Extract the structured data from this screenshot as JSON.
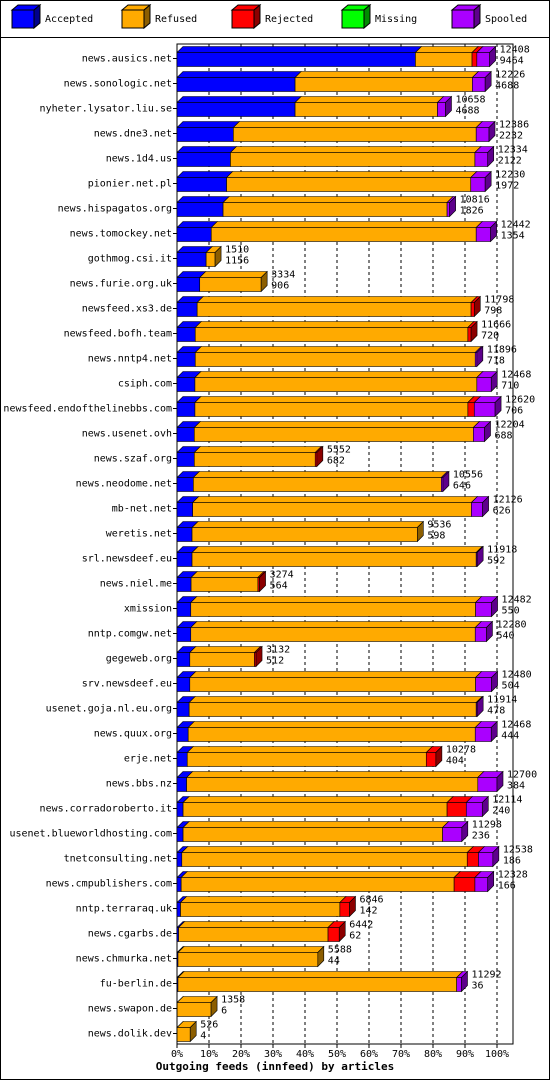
{
  "chart_data": {
    "type": "bar3d",
    "x_label": "Outgoing feeds (innfeed) by articles",
    "categories": [
      "news.ausics.net",
      "news.sonologic.net",
      "nyheter.lysator.liu.se",
      "news.dne3.net",
      "news.1d4.us",
      "pionier.net.pl",
      "news.hispagatos.org",
      "news.tomockey.net",
      "gothmog.csi.it",
      "news.furie.org.uk",
      "newsfeed.xs3.de",
      "newsfeed.bofh.team",
      "news.nntp4.net",
      "csiph.com",
      "newsfeed.endofthelinebbs.com",
      "news.usenet.ovh",
      "news.szaf.org",
      "news.neodome.net",
      "mb-net.net",
      "weretis.net",
      "srl.newsdeef.eu",
      "news.niel.me",
      "xmission",
      "nntp.comgw.net",
      "gegeweb.org",
      "srv.newsdeef.eu",
      "usenet.goja.nl.eu.org",
      "news.quux.org",
      "erje.net",
      "news.bbs.nz",
      "news.corradoroberto.it",
      "usenet.blueworldhosting.com",
      "tnetconsulting.net",
      "news.cmpublishers.com",
      "nntp.terraraq.uk",
      "news.cgarbs.de",
      "news.chmurka.net",
      "fu-berlin.de",
      "news.swapon.de",
      "news.dolik.dev"
    ],
    "totals": [
      12408,
      12226,
      10658,
      12386,
      12334,
      12230,
      10816,
      12442,
      1510,
      3334,
      11798,
      11666,
      11896,
      12468,
      12620,
      12204,
      5552,
      10556,
      12126,
      9536,
      11918,
      3274,
      12482,
      12280,
      3132,
      12480,
      11914,
      12468,
      10278,
      12700,
      12114,
      11298,
      12538,
      12328,
      6846,
      6442,
      5588,
      11292,
      1358,
      526
    ],
    "accepted_counts": [
      9464,
      4688,
      4688,
      2232,
      2122,
      1972,
      1826,
      1354,
      1156,
      906,
      798,
      720,
      718,
      710,
      706,
      688,
      682,
      646,
      626,
      598,
      592,
      564,
      550,
      540,
      512,
      504,
      478,
      444,
      404,
      384,
      240,
      236,
      186,
      166,
      142,
      62,
      44,
      36,
      6,
      4
    ],
    "series": [
      {
        "name": "Accepted",
        "color": "#0000ff",
        "values": [
          74.5,
          36.9,
          36.9,
          17.6,
          16.7,
          15.5,
          14.4,
          10.7,
          9.1,
          7.1,
          6.3,
          5.7,
          5.7,
          5.6,
          5.6,
          5.4,
          5.4,
          5.1,
          4.9,
          4.7,
          4.7,
          4.4,
          4.3,
          4.3,
          4.0,
          4.0,
          3.8,
          3.5,
          3.2,
          3.0,
          1.9,
          1.9,
          1.5,
          1.3,
          1.1,
          0.5,
          0.3,
          0.3,
          0.05,
          0.03
        ]
      },
      {
        "name": "Refused",
        "color": "#ffaa00",
        "values": [
          17.7,
          55.4,
          44.5,
          75.9,
          76.4,
          76.3,
          70.0,
          82.8,
          2.8,
          19.2,
          85.6,
          85.2,
          87.5,
          88.1,
          85.3,
          87.2,
          37.8,
          77.5,
          87.1,
          70.4,
          88.8,
          20.9,
          89.0,
          88.9,
          20.2,
          89.3,
          89.7,
          89.7,
          74.7,
          91.0,
          82.5,
          81.1,
          89.2,
          85.3,
          49.8,
          46.7,
          43.7,
          87.1,
          10.6,
          4.1
        ]
      },
      {
        "name": "Rejected",
        "color": "#ff0000",
        "values": [
          1.5,
          0,
          0,
          0,
          0,
          0,
          0,
          0,
          0,
          0,
          1,
          1,
          0,
          0,
          2,
          0,
          0.5,
          0,
          0,
          0,
          0,
          0.5,
          0,
          0,
          0.5,
          0,
          0,
          0,
          3,
          0,
          6,
          0,
          3.5,
          6.5,
          3,
          3.5,
          0,
          0,
          0,
          0
        ]
      },
      {
        "name": "Missing",
        "color": "#00ff00",
        "values": [
          0,
          0,
          0,
          0,
          0,
          0,
          0,
          0,
          0,
          0,
          0,
          0,
          0,
          0,
          0,
          0,
          0,
          0,
          0,
          0,
          0,
          0,
          0,
          0,
          0,
          0,
          0,
          0,
          0,
          0,
          0,
          0,
          0,
          0,
          0,
          0,
          0,
          0,
          0,
          0
        ]
      },
      {
        "name": "Spooled",
        "color": "#aa00ff",
        "values": [
          4,
          4,
          2.5,
          4,
          4,
          4.5,
          0.8,
          4.5,
          0,
          0,
          0,
          0,
          0.5,
          4.5,
          6.5,
          3.5,
          0,
          0.5,
          3.5,
          0,
          0.3,
          0,
          5,
          3.5,
          0,
          5,
          0.3,
          5,
          0,
          6,
          5,
          6,
          4.5,
          4,
          0,
          0,
          0,
          1.5,
          0,
          0
        ]
      }
    ],
    "xlim": [
      0,
      105
    ],
    "xticks": [
      {
        "value": 0,
        "label": "0%"
      },
      {
        "value": 10,
        "label": "10%"
      },
      {
        "value": 20,
        "label": "20%"
      },
      {
        "value": 30,
        "label": "30%"
      },
      {
        "value": 40,
        "label": "40%"
      },
      {
        "value": 50,
        "label": "50%"
      },
      {
        "value": 60,
        "label": "60%"
      },
      {
        "value": 70,
        "label": "70%"
      },
      {
        "value": 80,
        "label": "80%"
      },
      {
        "value": 90,
        "label": "90%"
      },
      {
        "value": 100,
        "label": "100%"
      }
    ],
    "grid": true
  }
}
